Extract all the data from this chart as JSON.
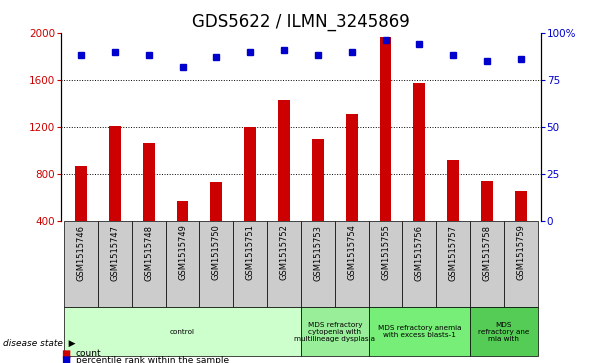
{
  "title": "GDS5622 / ILMN_3245869",
  "samples": [
    "GSM1515746",
    "GSM1515747",
    "GSM1515748",
    "GSM1515749",
    "GSM1515750",
    "GSM1515751",
    "GSM1515752",
    "GSM1515753",
    "GSM1515754",
    "GSM1515755",
    "GSM1515756",
    "GSM1515757",
    "GSM1515758",
    "GSM1515759"
  ],
  "counts": [
    870,
    1210,
    1060,
    575,
    730,
    1195,
    1430,
    1095,
    1310,
    1960,
    1575,
    920,
    740,
    660
  ],
  "percentiles": [
    88,
    90,
    88,
    82,
    87,
    90,
    91,
    88,
    90,
    96,
    94,
    88,
    85,
    86
  ],
  "bar_color": "#cc0000",
  "dot_color": "#0000cc",
  "ylim_left": [
    400,
    2000
  ],
  "ylim_right": [
    0,
    100
  ],
  "yticks_left": [
    400,
    800,
    1200,
    1600,
    2000
  ],
  "yticks_right": [
    0,
    25,
    50,
    75,
    100
  ],
  "yticklabels_right": [
    "0",
    "25",
    "50",
    "75",
    "100%"
  ],
  "disease_groups": [
    {
      "label": "control",
      "start": 0,
      "end": 7,
      "color": "#ccffcc"
    },
    {
      "label": "MDS refractory\ncytopenia with\nmultilineage dysplasia",
      "start": 7,
      "end": 9,
      "color": "#99ee99"
    },
    {
      "label": "MDS refractory anemia\nwith excess blasts-1",
      "start": 9,
      "end": 12,
      "color": "#77ee77"
    },
    {
      "label": "MDS\nrefractory ane\nmia with",
      "start": 12,
      "end": 14,
      "color": "#55cc55"
    }
  ],
  "legend_count_label": "count",
  "legend_pct_label": "percentile rank within the sample",
  "disease_state_label": "disease state",
  "tick_fontsize": 7.5,
  "label_fontsize": 6,
  "title_fontsize": 12
}
